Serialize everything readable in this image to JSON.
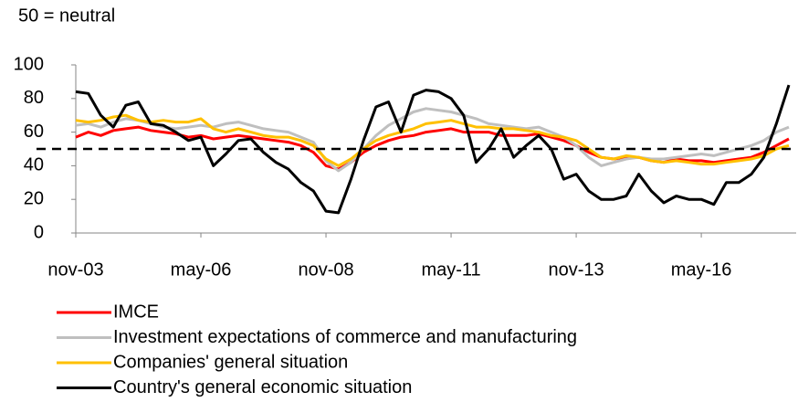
{
  "chart_data": {
    "type": "line",
    "subtitle": "50 = neutral",
    "categories": [
      "nov-03",
      null,
      null,
      null,
      null,
      null,
      null,
      null,
      null,
      null,
      "may-06",
      null,
      null,
      null,
      null,
      null,
      null,
      null,
      null,
      null,
      "nov-08",
      null,
      null,
      null,
      null,
      null,
      null,
      null,
      null,
      null,
      "may-11",
      null,
      null,
      null,
      null,
      null,
      null,
      null,
      null,
      null,
      "nov-13",
      null,
      null,
      null,
      null,
      null,
      null,
      null,
      null,
      null,
      "may-16",
      null,
      null,
      null,
      null,
      null,
      null,
      null
    ],
    "series": [
      {
        "name": "IMCE",
        "color": "#ff0000",
        "values": [
          57,
          60,
          58,
          61,
          62,
          63,
          61,
          60,
          59,
          57,
          58,
          56,
          57,
          58,
          57,
          56,
          55,
          54,
          52,
          48,
          40,
          38,
          42,
          48,
          52,
          55,
          57,
          58,
          60,
          61,
          62,
          60,
          60,
          60,
          58,
          58,
          58,
          59,
          57,
          55,
          52,
          48,
          45,
          44,
          45,
          45,
          43,
          42,
          44,
          43,
          43,
          42,
          43,
          44,
          45,
          48,
          52,
          56
        ]
      },
      {
        "name": "Investment expectations of commerce and manufacturing",
        "color": "#bfbfbf",
        "values": [
          64,
          65,
          63,
          66,
          68,
          67,
          65,
          63,
          62,
          63,
          64,
          63,
          65,
          66,
          64,
          62,
          61,
          60,
          57,
          54,
          43,
          37,
          42,
          50,
          58,
          64,
          68,
          72,
          74,
          73,
          72,
          70,
          68,
          65,
          64,
          63,
          62,
          63,
          60,
          57,
          52,
          45,
          40,
          42,
          44,
          45,
          44,
          44,
          45,
          46,
          47,
          46,
          48,
          50,
          52,
          55,
          60,
          63
        ]
      },
      {
        "name": "Companies' general situation",
        "color": "#ffc000",
        "values": [
          67,
          66,
          67,
          69,
          70,
          67,
          66,
          67,
          66,
          66,
          68,
          62,
          60,
          62,
          60,
          58,
          57,
          57,
          55,
          52,
          44,
          40,
          44,
          50,
          55,
          58,
          60,
          62,
          65,
          66,
          67,
          65,
          63,
          63,
          62,
          62,
          61,
          60,
          58,
          57,
          55,
          50,
          45,
          44,
          46,
          45,
          43,
          42,
          43,
          42,
          41,
          41,
          42,
          43,
          44,
          46,
          50,
          52
        ]
      },
      {
        "name": "Country's general economic situation",
        "color": "#000000",
        "values": [
          84,
          83,
          70,
          63,
          76,
          78,
          65,
          64,
          60,
          55,
          57,
          40,
          47,
          55,
          56,
          48,
          42,
          38,
          30,
          25,
          13,
          12,
          32,
          55,
          75,
          78,
          60,
          82,
          85,
          84,
          80,
          70,
          42,
          50,
          62,
          45,
          52,
          58,
          50,
          32,
          35,
          25,
          20,
          20,
          22,
          35,
          25,
          18,
          22,
          20,
          20,
          17,
          30,
          30,
          35,
          45,
          65,
          88
        ]
      }
    ],
    "reference_line": 50,
    "ylim": [
      0,
      100
    ],
    "yticks": [
      0,
      20,
      40,
      60,
      80,
      100
    ]
  }
}
